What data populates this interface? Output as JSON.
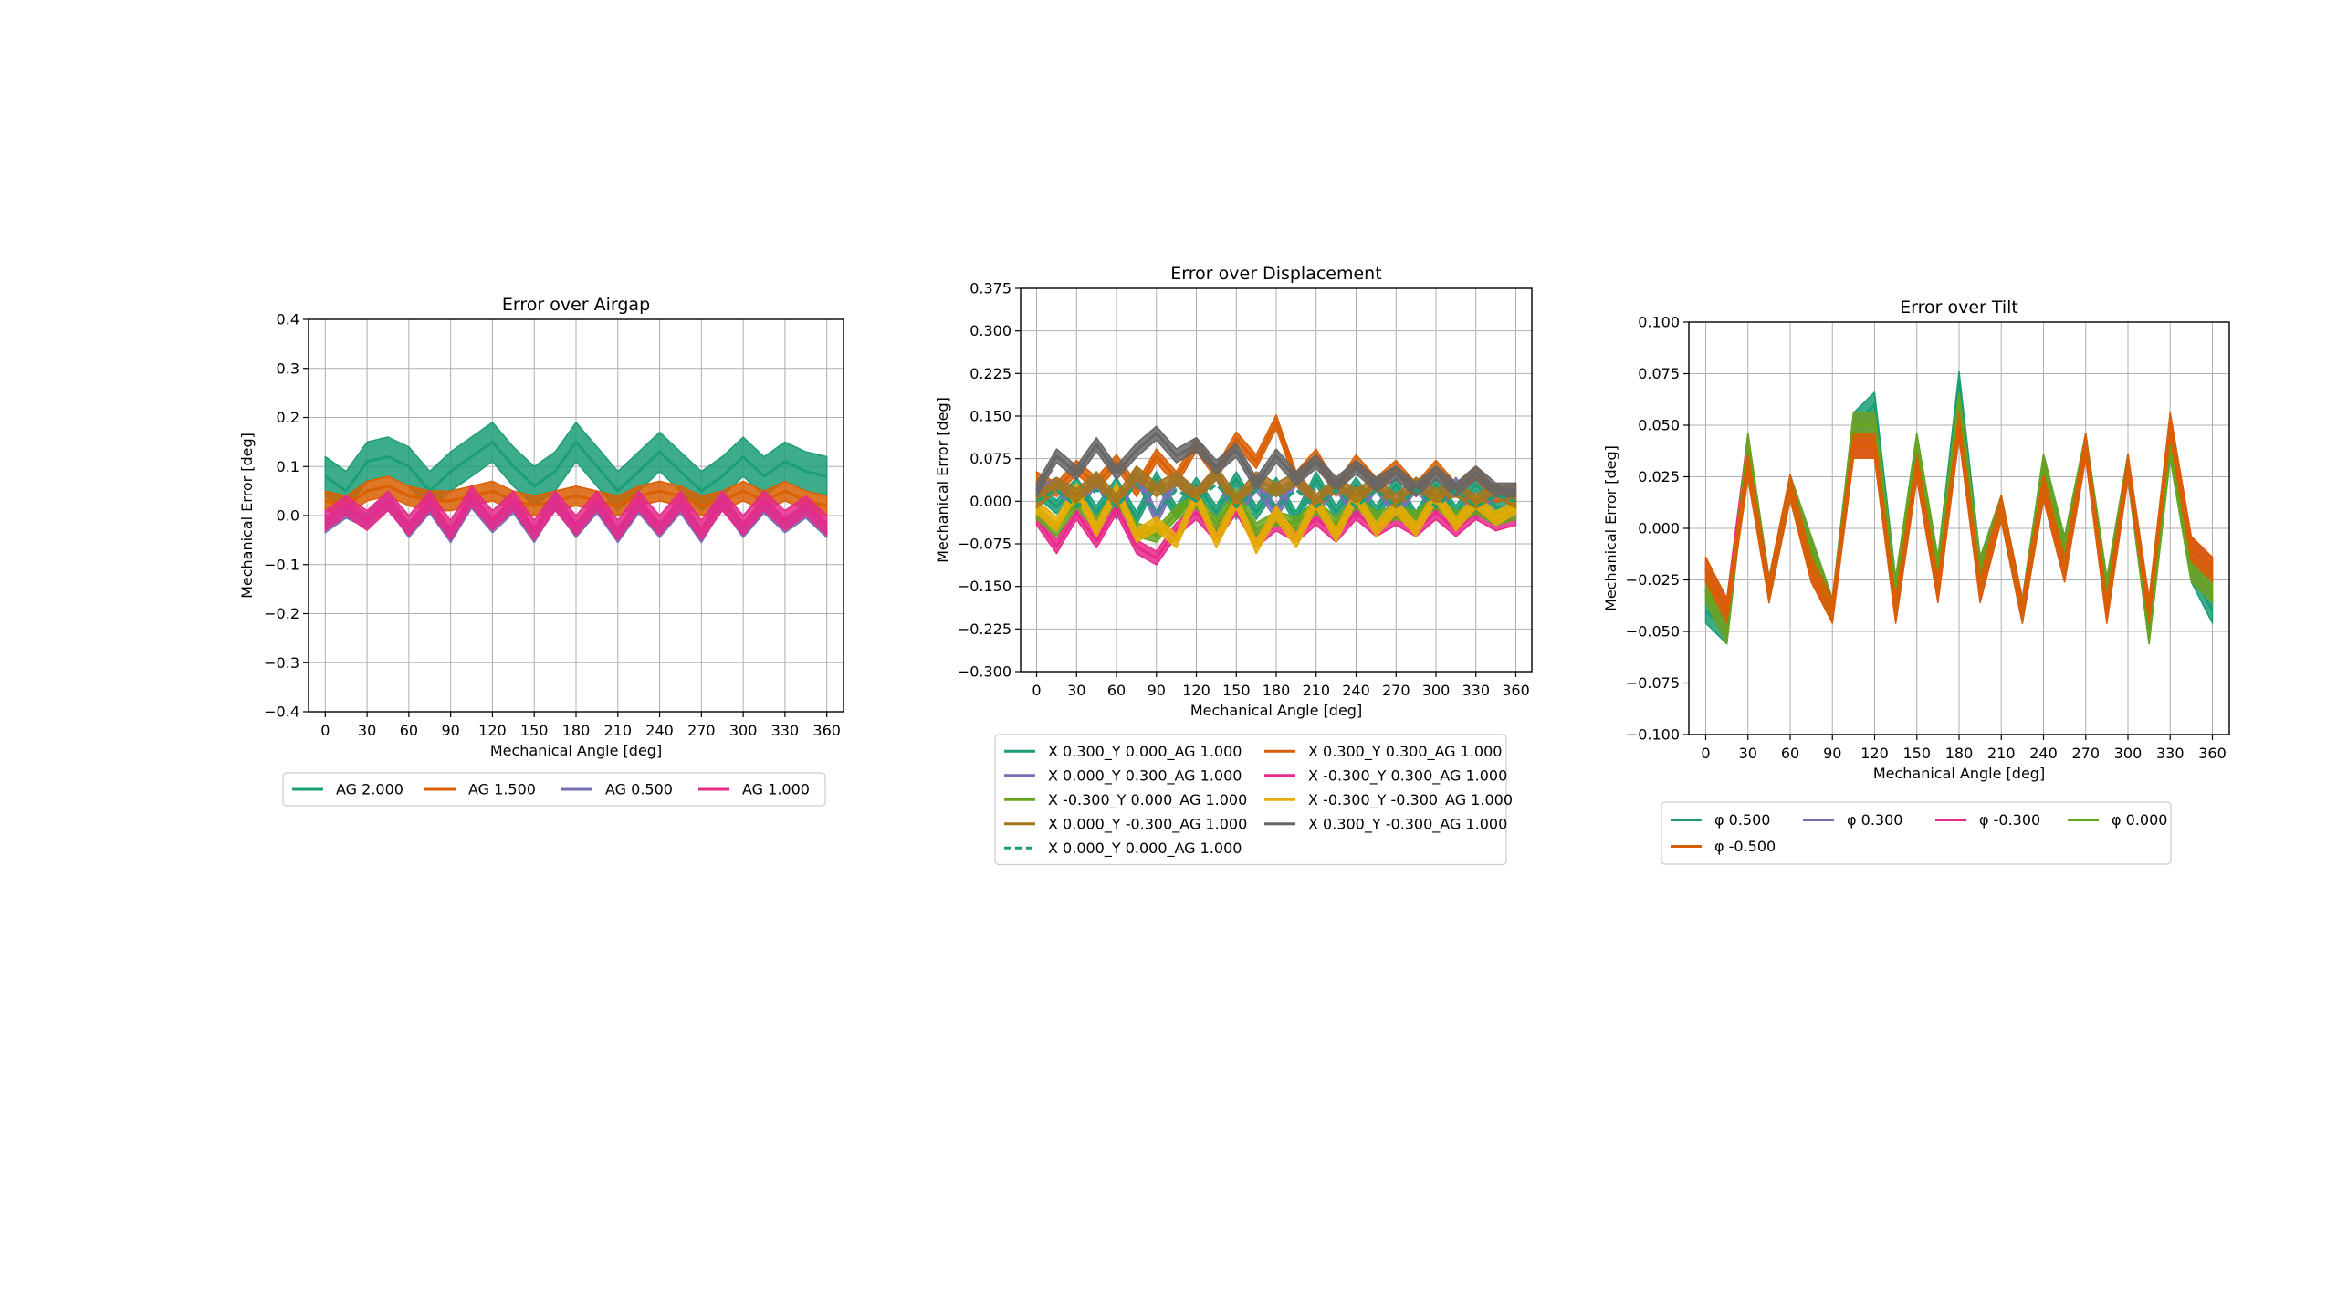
{
  "chart_data": [
    {
      "type": "line",
      "title": "Error over Airgap",
      "xlabel": "Mechanical Angle [deg]",
      "ylabel": "Mechanical Error [deg]",
      "xlim": [
        -12,
        372
      ],
      "ylim": [
        -0.4,
        0.4
      ],
      "xticks": [
        0,
        30,
        60,
        90,
        120,
        150,
        180,
        210,
        240,
        270,
        300,
        330,
        360
      ],
      "yticks": [
        -0.4,
        -0.3,
        -0.2,
        -0.1,
        0.0,
        0.1,
        0.2,
        0.3,
        0.4
      ],
      "ytick_decimals": 1,
      "grid": true,
      "legend": {
        "placement": "below",
        "columns": 4
      },
      "x": [
        0,
        15,
        30,
        45,
        60,
        75,
        90,
        105,
        120,
        135,
        150,
        165,
        180,
        195,
        210,
        225,
        240,
        255,
        270,
        285,
        300,
        315,
        330,
        345,
        360
      ],
      "series": [
        {
          "name": "AG 2.000",
          "color": "#1b9e77",
          "band": 0.04,
          "values": [
            0.08,
            0.05,
            0.11,
            0.12,
            0.1,
            0.05,
            0.09,
            0.12,
            0.15,
            0.1,
            0.06,
            0.09,
            0.15,
            0.1,
            0.05,
            0.09,
            0.13,
            0.09,
            0.05,
            0.08,
            0.12,
            0.08,
            0.11,
            0.09,
            0.08
          ]
        },
        {
          "name": "AG 1.500",
          "color": "#d95f02",
          "band": 0.02,
          "values": [
            0.03,
            0.02,
            0.05,
            0.06,
            0.04,
            0.03,
            0.03,
            0.04,
            0.05,
            0.03,
            0.02,
            0.03,
            0.04,
            0.03,
            0.02,
            0.04,
            0.05,
            0.04,
            0.02,
            0.03,
            0.05,
            0.03,
            0.05,
            0.03,
            0.02
          ]
        },
        {
          "name": "AG 0.500",
          "color": "#7570b3",
          "band": 0.015,
          "values": [
            -0.02,
            0.01,
            -0.01,
            0.03,
            -0.03,
            0.02,
            -0.04,
            0.03,
            -0.02,
            0.02,
            -0.04,
            0.03,
            -0.03,
            0.02,
            -0.04,
            0.02,
            -0.03,
            0.02,
            -0.04,
            0.03,
            -0.03,
            0.02,
            -0.02,
            0.01,
            -0.03
          ]
        },
        {
          "name": "AG 1.000",
          "color": "#e7298a",
          "band": 0.02,
          "values": [
            -0.01,
            0.02,
            -0.01,
            0.03,
            -0.02,
            0.03,
            -0.03,
            0.04,
            -0.01,
            0.03,
            -0.03,
            0.03,
            -0.02,
            0.03,
            -0.03,
            0.03,
            -0.02,
            0.03,
            -0.03,
            0.03,
            -0.02,
            0.03,
            -0.01,
            0.02,
            -0.02
          ]
        }
      ]
    },
    {
      "type": "line",
      "title": "Error over Displacement",
      "xlabel": "Mechanical Angle [deg]",
      "ylabel": "Mechanical Error [deg]",
      "xlim": [
        -12,
        372
      ],
      "ylim": [
        -0.3,
        0.375
      ],
      "xticks": [
        0,
        30,
        60,
        90,
        120,
        150,
        180,
        210,
        240,
        270,
        300,
        330,
        360
      ],
      "yticks": [
        -0.3,
        -0.225,
        -0.15,
        -0.075,
        0.0,
        0.075,
        0.15,
        0.225,
        0.3,
        0.375
      ],
      "ytick_decimals": 3,
      "grid": true,
      "legend": {
        "placement": "below",
        "columns": 2
      },
      "x": [
        0,
        15,
        30,
        45,
        60,
        75,
        90,
        105,
        120,
        135,
        150,
        165,
        180,
        195,
        210,
        225,
        240,
        255,
        270,
        285,
        300,
        315,
        330,
        345,
        360
      ],
      "series": [
        {
          "name": "X 0.300_Y 0.000_AG 1.000",
          "color": "#1b9e77",
          "band": 0.012,
          "values": [
            0.02,
            -0.01,
            0.03,
            -0.02,
            0.03,
            -0.03,
            0.04,
            -0.02,
            0.03,
            -0.02,
            0.04,
            -0.02,
            0.03,
            -0.03,
            0.04,
            -0.02,
            0.03,
            -0.02,
            0.03,
            -0.03,
            0.03,
            -0.02,
            0.03,
            -0.01,
            -0.01
          ]
        },
        {
          "name": "X 0.300_Y 0.300_AG 1.000",
          "color": "#d95f02",
          "band": 0.012,
          "values": [
            0.04,
            0.02,
            0.06,
            0.03,
            0.07,
            0.02,
            0.08,
            0.04,
            0.1,
            0.05,
            0.11,
            0.07,
            0.14,
            0.04,
            0.08,
            0.02,
            0.07,
            0.03,
            0.06,
            0.02,
            0.06,
            0.02,
            0.05,
            0.01,
            0.02
          ]
        },
        {
          "name": "X 0.000_Y 0.300_AG 1.000",
          "color": "#7570b3",
          "band": 0.012,
          "values": [
            0.01,
            0.03,
            -0.01,
            0.04,
            -0.02,
            0.05,
            -0.03,
            0.04,
            0.01,
            0.05,
            -0.02,
            0.03,
            -0.02,
            0.04,
            -0.01,
            0.03,
            -0.02,
            0.03,
            -0.02,
            0.03,
            -0.01,
            0.03,
            -0.02,
            0.02,
            0.0
          ]
        },
        {
          "name": "X -0.300_Y 0.300_AG 1.000",
          "color": "#e7298a",
          "band": 0.012,
          "values": [
            -0.03,
            -0.08,
            -0.02,
            -0.07,
            -0.01,
            -0.08,
            -0.1,
            -0.05,
            -0.02,
            -0.06,
            -0.01,
            -0.07,
            -0.04,
            -0.06,
            -0.03,
            -0.06,
            -0.02,
            -0.05,
            -0.03,
            -0.05,
            -0.02,
            -0.05,
            -0.02,
            -0.04,
            -0.03
          ]
        },
        {
          "name": "X -0.300_Y 0.000_AG 1.000",
          "color": "#66a61e",
          "band": 0.012,
          "values": [
            -0.02,
            -0.05,
            0.0,
            -0.04,
            0.01,
            -0.05,
            -0.06,
            -0.02,
            0.0,
            -0.04,
            0.01,
            -0.05,
            -0.03,
            -0.04,
            -0.01,
            -0.04,
            0.0,
            -0.03,
            -0.02,
            -0.03,
            0.0,
            -0.03,
            -0.01,
            -0.03,
            -0.02
          ]
        },
        {
          "name": "X -0.300_Y -0.300_AG 1.000",
          "color": "#e6ab02",
          "band": 0.012,
          "values": [
            -0.01,
            -0.04,
            0.02,
            -0.05,
            0.02,
            -0.06,
            -0.04,
            -0.07,
            0.01,
            -0.07,
            0.0,
            -0.08,
            -0.02,
            -0.07,
            0.0,
            -0.06,
            0.01,
            -0.05,
            -0.01,
            -0.05,
            0.01,
            -0.04,
            0.0,
            -0.03,
            -0.01
          ]
        },
        {
          "name": "X 0.000_Y -0.300_AG 1.000",
          "color": "#a6761d",
          "band": 0.012,
          "values": [
            0.0,
            0.03,
            0.01,
            0.04,
            0.0,
            0.05,
            0.02,
            0.04,
            0.01,
            0.05,
            0.0,
            0.04,
            0.02,
            0.04,
            0.0,
            0.03,
            0.01,
            0.03,
            0.0,
            0.03,
            0.01,
            0.02,
            0.0,
            0.02,
            0.0
          ]
        },
        {
          "name": "X 0.300_Y -0.300_AG 1.000",
          "color": "#666666",
          "band": 0.012,
          "values": [
            0.02,
            0.08,
            0.05,
            0.1,
            0.05,
            0.09,
            0.12,
            0.08,
            0.1,
            0.06,
            0.09,
            0.03,
            0.08,
            0.04,
            0.07,
            0.03,
            0.06,
            0.03,
            0.05,
            0.02,
            0.05,
            0.02,
            0.05,
            0.02,
            0.02
          ]
        },
        {
          "name": "X 0.000_Y 0.000_AG 1.000",
          "color": "#1b9e77",
          "dashed": true,
          "band": 0,
          "values": [
            0.0,
            0.02,
            -0.01,
            0.02,
            -0.01,
            0.03,
            -0.02,
            0.02,
            0.0,
            0.03,
            -0.01,
            0.02,
            -0.01,
            0.02,
            -0.01,
            0.02,
            -0.01,
            0.02,
            -0.01,
            0.02,
            -0.01,
            0.02,
            -0.01,
            0.01,
            0.0
          ]
        }
      ]
    },
    {
      "type": "line",
      "title": "Error over Tilt",
      "xlabel": "Mechanical Angle [deg]",
      "ylabel": "Mechanical Error [deg]",
      "xlim": [
        -12,
        372
      ],
      "ylim": [
        -0.1,
        0.1
      ],
      "xticks": [
        0,
        30,
        60,
        90,
        120,
        150,
        180,
        210,
        240,
        270,
        300,
        330,
        360
      ],
      "yticks": [
        -0.1,
        -0.075,
        -0.05,
        -0.025,
        0.0,
        0.025,
        0.05,
        0.075,
        0.1
      ],
      "ytick_decimals": 3,
      "grid": true,
      "legend": {
        "placement": "below",
        "columns": 4
      },
      "x": [
        0,
        15,
        30,
        45,
        60,
        75,
        90,
        105,
        120,
        135,
        150,
        165,
        180,
        195,
        210,
        225,
        240,
        255,
        270,
        285,
        300,
        315,
        330,
        345,
        360
      ],
      "series": [
        {
          "name": "φ 0.500",
          "color": "#1b9e77",
          "band": 0.006,
          "values": [
            -0.04,
            -0.05,
            0.04,
            -0.03,
            0.02,
            -0.01,
            -0.04,
            0.05,
            0.06,
            -0.03,
            0.04,
            -0.02,
            0.07,
            -0.02,
            0.01,
            -0.04,
            0.03,
            -0.01,
            0.04,
            -0.03,
            0.03,
            -0.05,
            0.04,
            -0.02,
            -0.04
          ]
        },
        {
          "name": "φ 0.300",
          "color": "#7570b3",
          "band": 0.006,
          "values": [
            -0.03,
            -0.05,
            0.04,
            -0.03,
            0.02,
            -0.01,
            -0.04,
            0.05,
            0.05,
            -0.03,
            0.04,
            -0.02,
            0.06,
            -0.02,
            0.01,
            -0.04,
            0.03,
            -0.01,
            0.04,
            -0.03,
            0.03,
            -0.05,
            0.04,
            -0.02,
            -0.03
          ]
        },
        {
          "name": "φ -0.300",
          "color": "#e7298a",
          "band": 0.006,
          "values": [
            -0.02,
            -0.04,
            0.04,
            -0.03,
            0.02,
            -0.02,
            -0.04,
            0.04,
            0.04,
            -0.04,
            0.03,
            -0.03,
            0.05,
            -0.03,
            0.01,
            -0.04,
            0.02,
            -0.02,
            0.04,
            -0.04,
            0.03,
            -0.04,
            0.05,
            -0.01,
            -0.02
          ]
        },
        {
          "name": "φ 0.000",
          "color": "#66a61e",
          "band": 0.006,
          "values": [
            -0.03,
            -0.05,
            0.04,
            -0.03,
            0.02,
            -0.01,
            -0.04,
            0.05,
            0.05,
            -0.03,
            0.04,
            -0.02,
            0.06,
            -0.02,
            0.01,
            -0.04,
            0.03,
            -0.01,
            0.04,
            -0.03,
            0.03,
            -0.05,
            0.04,
            -0.02,
            -0.03
          ]
        },
        {
          "name": "φ -0.500",
          "color": "#d95f02",
          "band": 0.006,
          "values": [
            -0.02,
            -0.04,
            0.03,
            -0.03,
            0.02,
            -0.02,
            -0.04,
            0.04,
            0.04,
            -0.04,
            0.03,
            -0.03,
            0.05,
            -0.03,
            0.01,
            -0.04,
            0.02,
            -0.02,
            0.04,
            -0.04,
            0.03,
            -0.04,
            0.05,
            -0.01,
            -0.02
          ]
        }
      ]
    }
  ]
}
